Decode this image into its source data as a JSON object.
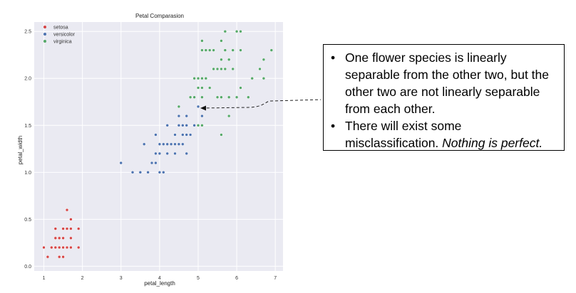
{
  "chart_data": {
    "type": "scatter",
    "title": "Petal Comparasion",
    "xlabel": "petal_length",
    "ylabel": "petal_width",
    "xlim": [
      0.75,
      7.2
    ],
    "ylim": [
      -0.05,
      2.6
    ],
    "xticks": [
      "1",
      "2",
      "3",
      "4",
      "5",
      "6",
      "7"
    ],
    "yticks": [
      "0.0",
      "0.5",
      "1.0",
      "1.5",
      "2.0",
      "2.5"
    ],
    "grid": true,
    "legend_position": "top-left",
    "background": "#eaeaf2",
    "series": [
      {
        "name": "setosa",
        "color": "#d64545",
        "x": [
          1.4,
          1.4,
          1.3,
          1.5,
          1.4,
          1.7,
          1.4,
          1.5,
          1.4,
          1.5,
          1.5,
          1.6,
          1.4,
          1.1,
          1.2,
          1.5,
          1.3,
          1.4,
          1.7,
          1.5,
          1.7,
          1.5,
          1.0,
          1.7,
          1.9,
          1.6,
          1.6,
          1.5,
          1.4,
          1.6,
          1.6,
          1.5,
          1.5,
          1.4,
          1.5,
          1.2,
          1.3,
          1.4,
          1.3,
          1.5,
          1.3,
          1.3,
          1.3,
          1.6,
          1.9,
          1.4,
          1.6,
          1.4,
          1.5,
          1.4
        ],
        "y": [
          0.2,
          0.2,
          0.2,
          0.2,
          0.2,
          0.4,
          0.3,
          0.2,
          0.2,
          0.1,
          0.2,
          0.2,
          0.1,
          0.1,
          0.2,
          0.4,
          0.4,
          0.3,
          0.3,
          0.3,
          0.2,
          0.4,
          0.2,
          0.5,
          0.2,
          0.2,
          0.4,
          0.2,
          0.2,
          0.2,
          0.2,
          0.4,
          0.1,
          0.2,
          0.2,
          0.2,
          0.2,
          0.1,
          0.2,
          0.2,
          0.3,
          0.3,
          0.2,
          0.6,
          0.4,
          0.3,
          0.2,
          0.2,
          0.2,
          0.2
        ]
      },
      {
        "name": "versicolor",
        "color": "#4c72b0",
        "x": [
          4.7,
          4.5,
          4.9,
          4.0,
          4.6,
          4.5,
          4.7,
          3.3,
          4.6,
          3.9,
          3.5,
          4.2,
          4.0,
          4.7,
          3.6,
          4.4,
          4.5,
          4.1,
          4.5,
          3.9,
          4.8,
          4.0,
          4.9,
          4.7,
          4.3,
          4.4,
          4.8,
          5.0,
          4.5,
          3.5,
          3.8,
          3.7,
          3.9,
          5.1,
          4.5,
          4.5,
          4.7,
          4.4,
          4.1,
          4.0,
          4.4,
          4.6,
          4.0,
          3.3,
          4.2,
          4.2,
          4.2,
          4.3,
          3.0,
          4.1
        ],
        "y": [
          1.4,
          1.5,
          1.5,
          1.3,
          1.5,
          1.3,
          1.6,
          1.0,
          1.3,
          1.4,
          1.0,
          1.5,
          1.0,
          1.4,
          1.3,
          1.4,
          1.5,
          1.0,
          1.5,
          1.1,
          1.8,
          1.3,
          1.5,
          1.2,
          1.3,
          1.4,
          1.4,
          1.7,
          1.5,
          1.0,
          1.1,
          1.0,
          1.2,
          1.6,
          1.5,
          1.6,
          1.5,
          1.3,
          1.3,
          1.3,
          1.2,
          1.4,
          1.2,
          1.0,
          1.3,
          1.2,
          1.3,
          1.3,
          1.1,
          1.3
        ]
      },
      {
        "name": "virginica",
        "color": "#55a868",
        "x": [
          6.0,
          5.1,
          5.9,
          5.6,
          5.8,
          6.6,
          4.5,
          6.3,
          5.8,
          6.1,
          5.1,
          5.3,
          5.5,
          5.0,
          5.1,
          5.3,
          5.5,
          6.7,
          6.9,
          5.0,
          5.7,
          4.9,
          6.7,
          4.9,
          5.7,
          6.0,
          4.8,
          4.9,
          5.6,
          5.8,
          6.1,
          6.4,
          5.6,
          5.1,
          5.6,
          6.1,
          5.6,
          5.5,
          4.8,
          5.4,
          5.6,
          5.1,
          5.1,
          5.9,
          5.7,
          5.2,
          5.0,
          5.2,
          5.4,
          5.1
        ],
        "y": [
          2.5,
          1.9,
          2.1,
          1.8,
          2.2,
          2.1,
          1.7,
          1.8,
          1.8,
          2.5,
          2.0,
          1.9,
          2.1,
          2.0,
          2.4,
          2.3,
          1.8,
          2.2,
          2.3,
          1.5,
          2.3,
          2.0,
          2.0,
          1.8,
          2.1,
          1.8,
          1.8,
          1.8,
          2.1,
          1.6,
          1.9,
          2.0,
          2.2,
          1.5,
          1.4,
          2.3,
          2.4,
          1.8,
          1.8,
          2.1,
          2.4,
          2.3,
          1.9,
          2.3,
          2.5,
          2.3,
          1.9,
          2.0,
          2.3,
          1.8
        ]
      }
    ]
  },
  "callout": {
    "bullet_char": "•",
    "bullet1": "One flower species is linearly separable from the other two, but the other two are not linearly separable from each other.",
    "bullet2_plain": "There will exist some misclassification. ",
    "bullet2_italic": "Nothing is perfect."
  }
}
